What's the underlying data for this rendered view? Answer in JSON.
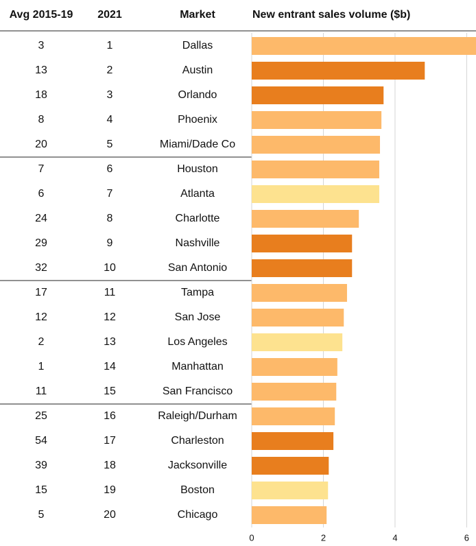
{
  "chart_data": {
    "type": "bar",
    "orientation": "horizontal",
    "columns": [
      "Avg 2015-19",
      "2021",
      "Market"
    ],
    "value_header": "New entrant sales volume ($b)",
    "avg_2015_19": [
      3,
      13,
      18,
      8,
      20,
      7,
      6,
      24,
      29,
      32,
      17,
      12,
      2,
      1,
      11,
      25,
      54,
      39,
      15,
      5
    ],
    "rank_2021": [
      1,
      2,
      3,
      4,
      5,
      6,
      7,
      8,
      9,
      10,
      11,
      12,
      13,
      14,
      15,
      16,
      17,
      18,
      19,
      20
    ],
    "categories": [
      "Dallas",
      "Austin",
      "Orlando",
      "Phoenix",
      "Miami/Dade Co",
      "Houston",
      "Atlanta",
      "Charlotte",
      "Nashville",
      "San Antonio",
      "Tampa",
      "San Jose",
      "Los Angeles",
      "Manhattan",
      "San Francisco",
      "Raleigh/Durham",
      "Charleston",
      "Jacksonville",
      "Boston",
      "Chicago"
    ],
    "values": [
      6.26,
      4.83,
      3.68,
      3.62,
      3.58,
      3.56,
      3.56,
      2.99,
      2.8,
      2.8,
      2.66,
      2.57,
      2.53,
      2.39,
      2.36,
      2.32,
      2.28,
      2.15,
      2.13,
      2.09
    ],
    "colors": [
      "#fdb96a",
      "#e87e1e",
      "#e87e1e",
      "#fdb96a",
      "#fdb96a",
      "#fdb96a",
      "#fde28f",
      "#fdb96a",
      "#e87e1e",
      "#e87e1e",
      "#fdb96a",
      "#fdb96a",
      "#fde28f",
      "#fdb96a",
      "#fdb96a",
      "#fdb96a",
      "#e87e1e",
      "#e87e1e",
      "#fde28f",
      "#fdb96a"
    ],
    "xlim": [
      0,
      6.26
    ],
    "xticks": [
      0,
      2,
      4,
      6
    ],
    "grid": true
  }
}
